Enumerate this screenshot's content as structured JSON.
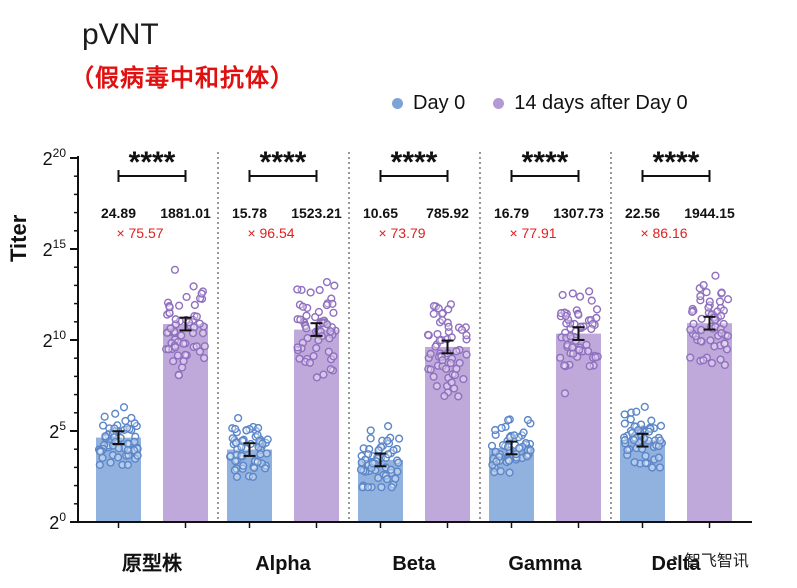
{
  "title": "pVNT",
  "subtitle": "（假病毒中和抗体）",
  "legend": [
    {
      "label": "Day 0",
      "color": "#7ea3d8"
    },
    {
      "label": "14 days after Day 0",
      "color": "#b49ad4"
    }
  ],
  "watermark": "智飞智讯",
  "chart_data": {
    "type": "bar",
    "ylabel": "Titer",
    "yscale": "log2",
    "ylim": [
      0,
      20
    ],
    "yticks": [
      {
        "base": "2",
        "exp": "0",
        "value": 0
      },
      {
        "base": "2",
        "exp": "5",
        "value": 5
      },
      {
        "base": "2",
        "exp": "10",
        "value": 10
      },
      {
        "base": "2",
        "exp": "15",
        "value": 15
      },
      {
        "base": "2",
        "exp": "20",
        "value": 20
      }
    ],
    "categories": [
      "原型株",
      "Alpha",
      "Beta",
      "Gamma",
      "Delta"
    ],
    "series": [
      {
        "name": "Day 0",
        "color": "#7ea3d8",
        "values": [
          24.89,
          15.78,
          10.65,
          16.79,
          22.56
        ],
        "value_labels": [
          "24.89",
          "15.78",
          "10.65",
          "16.79",
          "22.56"
        ]
      },
      {
        "name": "14 days after Day 0",
        "color": "#b49ad4",
        "values": [
          1881.01,
          1523.21,
          785.92,
          1307.73,
          1944.15
        ],
        "value_labels": [
          "1881.01",
          "1523.21",
          "785.92",
          "1307.73",
          "1944.15"
        ]
      }
    ],
    "fold_change": [
      "× 75.57",
      "× 96.54",
      "× 73.79",
      "× 77.91",
      "× 86.16"
    ],
    "significance": [
      "****",
      "****",
      "****",
      "****",
      "****"
    ]
  }
}
